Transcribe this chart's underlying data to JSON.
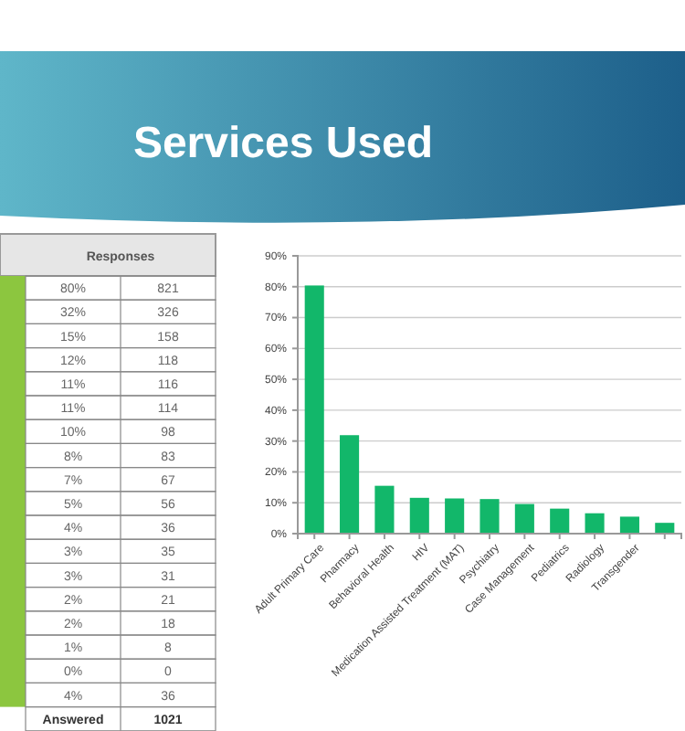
{
  "chart_data": [
    {
      "type": "other",
      "title": "Responses",
      "annotations": [
        "80%",
        "821",
        "32%",
        "326",
        "15%",
        "158",
        "12%",
        "118",
        "11%",
        "116",
        "11%",
        "114",
        "10%",
        "98",
        "8%",
        "83",
        "7%",
        "67",
        "5%",
        "56",
        "4%",
        "36",
        "3%",
        "35",
        "3%",
        "31",
        "2%",
        "21",
        "2%",
        "18",
        "1%",
        "8",
        "0%",
        "0",
        "4%",
        "36",
        "Answered",
        "1021"
      ]
    },
    {
      "type": "bar",
      "title": "Services Used",
      "categories": [
        "Adult Primary Care",
        "Pharmacy",
        "Behavioral Health",
        "HIV",
        "Medication Assisted Treatment (MAT)",
        "Psychiatry",
        "Case Management",
        "Pediatrics",
        "Radiology",
        "Transgender",
        null
      ],
      "values": [
        80.4,
        31.9,
        15.5,
        11.6,
        11.4,
        11.2,
        9.6,
        8.1,
        6.6,
        5.5,
        3.5
      ],
      "color": "#12b76a",
      "ylim": [
        0,
        90
      ],
      "yticks": [
        {
          "value": 0,
          "label": "0%"
        },
        {
          "value": 10,
          "label": "10%"
        },
        {
          "value": 20,
          "label": "20%"
        },
        {
          "value": 30,
          "label": "30%"
        },
        {
          "value": 40,
          "label": "40%"
        },
        {
          "value": 50,
          "label": "50%"
        },
        {
          "value": 60,
          "label": "60%"
        },
        {
          "value": 70,
          "label": "70%"
        },
        {
          "value": 80,
          "label": "80%"
        },
        {
          "value": 90,
          "label": "90%"
        }
      ],
      "grid": "y"
    }
  ]
}
